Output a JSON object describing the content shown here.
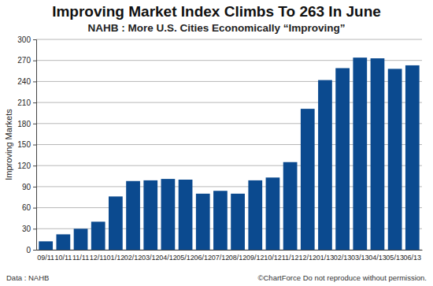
{
  "chart_data": {
    "type": "bar",
    "title": "Improving Market Index Climbs To 263 In June",
    "subtitle": "NAHB : More U.S. Cities Economically “Improving”",
    "ylabel": "Improving Markets",
    "annotations": [
      "Data : NAHB",
      "©ChartForce Do not reproduce without permission."
    ],
    "categories": [
      "09/11",
      "10/11",
      "11/11",
      "12/11",
      "01/12",
      "02/12",
      "03/12",
      "04/12",
      "05/12",
      "06/12",
      "07/12",
      "08/12",
      "09/12",
      "10/12",
      "11/12",
      "12/12",
      "01/13",
      "02/13",
      "03/13",
      "04/13",
      "05/13",
      "06/13"
    ],
    "values": [
      12,
      22,
      30,
      40,
      76,
      98,
      99,
      101,
      100,
      80,
      84,
      80,
      99,
      103,
      125,
      201,
      242,
      259,
      274,
      273,
      258,
      263
    ],
    "color": "#0b4a8f",
    "ylim": [
      0,
      300
    ],
    "yticks": [
      0,
      30,
      60,
      90,
      120,
      150,
      180,
      210,
      240,
      270,
      300
    ],
    "grid": true
  }
}
